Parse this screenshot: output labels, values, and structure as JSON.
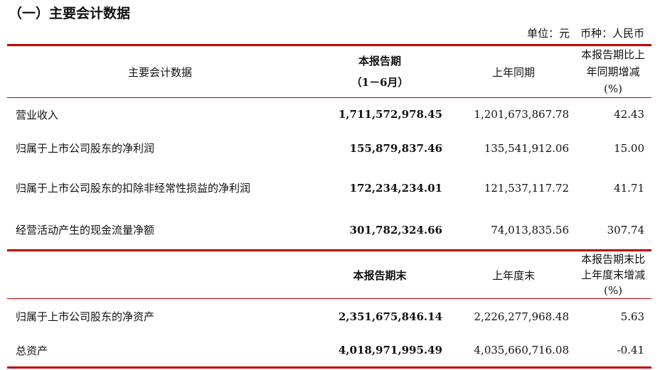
{
  "title": "（一）主要会计数据",
  "unit": "单位：元　币种：人民币",
  "header1": {
    "label": "主要会计数据",
    "current": "本报告期",
    "current_sub": "（1－6月）",
    "prior": "上年同期",
    "change": "本报告期比上年同期增减(%)"
  },
  "rows1": [
    {
      "label": "营业收入",
      "current": "1,711,572,978.45",
      "prior": "1,201,673,867.78",
      "change": "42.43"
    },
    {
      "label": "归属于上市公司股东的净利润",
      "current": "155,879,837.46",
      "prior": "135,541,912.06",
      "change": "15.00"
    },
    {
      "label": "归属于上市公司股东的扣除非经常性损益的净利润",
      "current": "172,234,234.01",
      "prior": "121,537,117.72",
      "change": "41.71"
    },
    {
      "label": "经营活动产生的现金流量净额",
      "current": "301,782,324.66",
      "prior": "74,013,835.56",
      "change": "307.74"
    }
  ],
  "header2": {
    "current": "本报告期末",
    "prior": "上年度末",
    "change": "本报告期末比上年度末增减(%)"
  },
  "rows2": [
    {
      "label": "归属于上市公司股东的净资产",
      "current": "2,351,675,846.14",
      "prior": "2,226,277,968.48",
      "change": "5.63"
    },
    {
      "label": "总资产",
      "current": "4,018,971,995.49",
      "prior": "4,035,660,716.08",
      "change": "-0.41"
    }
  ]
}
